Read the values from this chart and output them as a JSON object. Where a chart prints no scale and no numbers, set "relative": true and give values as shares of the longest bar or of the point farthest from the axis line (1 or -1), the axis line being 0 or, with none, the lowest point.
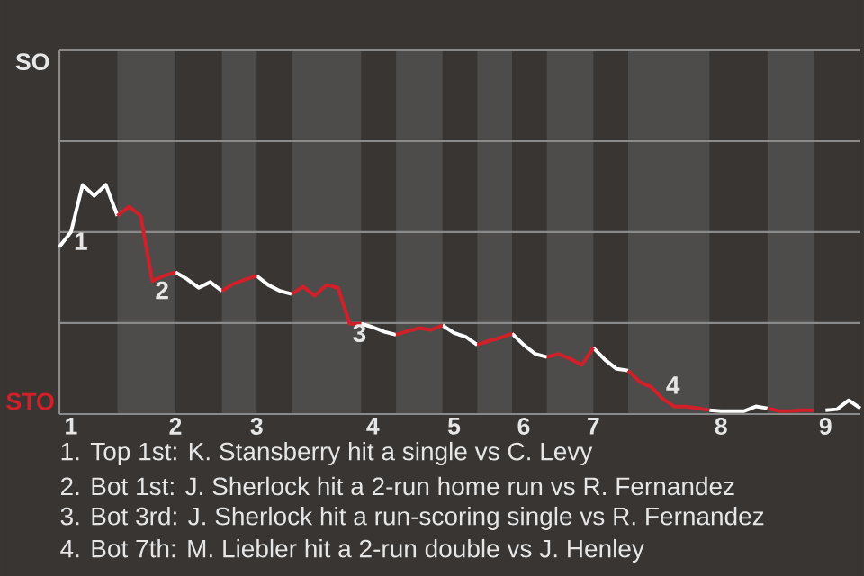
{
  "chart_data": {
    "type": "line",
    "relative": true,
    "categories": [
      null,
      "1",
      null,
      null,
      null,
      null,
      null,
      null,
      null,
      null,
      "2",
      null,
      null,
      null,
      null,
      null,
      null,
      "3",
      null,
      null,
      null,
      null,
      null,
      null,
      null,
      null,
      null,
      "4",
      null,
      null,
      null,
      null,
      null,
      null,
      "5",
      null,
      null,
      null,
      null,
      null,
      "6",
      null,
      null,
      null,
      null,
      null,
      "7",
      null,
      null,
      null,
      null,
      null,
      null,
      null,
      null,
      null,
      null,
      "8",
      null,
      null,
      null,
      null,
      null,
      null,
      null,
      null,
      "9",
      null,
      null,
      null
    ],
    "marker": "none",
    "line_style": "solid",
    "series": [
      {
        "color": "#ffffff",
        "values": [
          0.73,
          0.794,
          1,
          0.952,
          1,
          0.865,
          null,
          null,
          null,
          null,
          0.619,
          0.589,
          0.551,
          0.576,
          0.537,
          null,
          null,
          0.603,
          0.563,
          0.537,
          0.524,
          null,
          null,
          null,
          null,
          null,
          0.394,
          0.379,
          0.359,
          0.346,
          null,
          null,
          null,
          0.387,
          0.354,
          0.337,
          0.302,
          null,
          null,
          0.351,
          0.302,
          0.262,
          0.249,
          null,
          null,
          null,
          0.289,
          0.237,
          0.197,
          0.19,
          null,
          null,
          null,
          null,
          null,
          null,
          0.017,
          0.013,
          0.013,
          0.013,
          0.033,
          0.025,
          null,
          null,
          null,
          null,
          0.017,
          0.021,
          0.06,
          0.025
        ]
      },
      {
        "color": "#d0202a",
        "values": [
          null,
          null,
          null,
          null,
          null,
          0.865,
          0.905,
          0.865,
          0.581,
          0.603,
          0.619,
          null,
          null,
          null,
          0.537,
          0.568,
          0.587,
          0.603,
          null,
          null,
          0.524,
          0.556,
          0.516,
          0.563,
          0.551,
          0.394,
          0.394,
          null,
          null,
          0.346,
          0.362,
          0.375,
          0.367,
          0.387,
          null,
          null,
          0.302,
          0.319,
          0.333,
          0.351,
          null,
          null,
          0.249,
          0.262,
          0.241,
          0.214,
          0.289,
          null,
          null,
          0.19,
          0.14,
          0.117,
          0.065,
          0.032,
          0.032,
          0.025,
          0.017,
          null,
          null,
          null,
          null,
          0.025,
          0.013,
          0.014,
          0.017,
          0.017,
          null,
          null,
          null,
          null
        ]
      }
    ],
    "ref_lines": [
      {
        "axis": "y",
        "value": 0.397,
        "color": "#8a8a8a"
      },
      {
        "axis": "y",
        "value": 0.794,
        "color": "#8a8a8a"
      },
      {
        "axis": "y",
        "value": 1.19,
        "color": "#8a8a8a"
      },
      {
        "axis": "y",
        "value": 1.587,
        "color": "#8a8a8a"
      }
    ],
    "annotations": [
      {
        "text": "1",
        "y": 0.794
      },
      {
        "text": "2",
        "y": 0.581
      },
      {
        "text": "3",
        "y": 0.394
      },
      {
        "text": "4",
        "y": 0.065
      },
      "SO",
      "STO",
      "1. Top 1st: K. Stansberry hit a single vs C. Levy",
      "2. Bot 1st: J. Sherlock hit a 2-run home run vs R. Fernandez",
      "3. Bot 3rd: J. Sherlock hit a run-scoring single vs R. Fernandez",
      "4. Bot 7th: M. Liebler hit a 2-run double vs J. Henley"
    ]
  }
}
